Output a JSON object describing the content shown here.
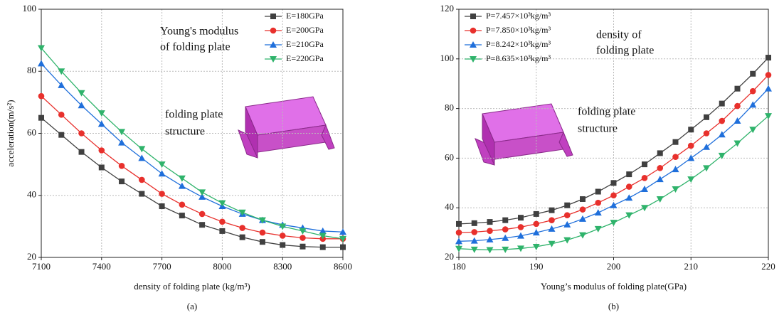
{
  "chart_data": [
    {
      "type": "line",
      "y_label": "acceleration(m/s²)",
      "x_label": "density of folding plate (kg/m³)",
      "caption": "(a)",
      "annotations": [
        "Young's modulus",
        "of folding plate",
        "folding plate",
        "structure"
      ],
      "x": [
        7100,
        7200,
        7300,
        7400,
        7500,
        7600,
        7700,
        7800,
        7900,
        8000,
        8100,
        8200,
        8300,
        8400,
        8500,
        8600
      ],
      "xlim": [
        7100,
        8600
      ],
      "xticks": [
        7100,
        7400,
        7700,
        8000,
        8300,
        8600
      ],
      "ylim": [
        20,
        100
      ],
      "yticks": [
        20,
        40,
        60,
        80,
        100
      ],
      "grid": true,
      "legend": "upper right",
      "series": [
        {
          "name": "E=180GPa",
          "color": "#404040",
          "marker": "square",
          "values": [
            65,
            59.5,
            54,
            49,
            44.5,
            40.5,
            36.5,
            33.5,
            30.5,
            28.5,
            26.5,
            25,
            24,
            23.5,
            23.3,
            23.3
          ]
        },
        {
          "name": "E=200GPa",
          "color": "#e8302c",
          "marker": "circle",
          "values": [
            72,
            66,
            60,
            54.5,
            49.5,
            45,
            40.5,
            37,
            34,
            31.5,
            29.5,
            28,
            27,
            26.3,
            26,
            26
          ]
        },
        {
          "name": "E=210GPa",
          "color": "#1f6fdb",
          "marker": "triangle-up",
          "values": [
            82.5,
            75.5,
            69,
            63,
            57,
            52,
            47,
            43,
            39.5,
            36.5,
            34,
            32,
            30.5,
            29.5,
            28.5,
            28.2
          ]
        },
        {
          "name": "E=220GPa",
          "color": "#2fb36b",
          "marker": "triangle-down",
          "values": [
            87.5,
            80,
            73,
            66.5,
            60.5,
            55,
            50,
            45.5,
            41,
            37.5,
            34.5,
            32,
            30,
            28.5,
            27,
            26
          ]
        }
      ]
    },
    {
      "type": "line",
      "x_label": "Young’s modulus of folding plate(GPa)",
      "caption": "(b)",
      "annotations": [
        "density of",
        "folding plate",
        "folding plate",
        "structure"
      ],
      "x": [
        180,
        182,
        184,
        186,
        188,
        190,
        192,
        194,
        196,
        198,
        200,
        202,
        204,
        206,
        208,
        210,
        212,
        214,
        216,
        218,
        220
      ],
      "xlim": [
        180,
        220
      ],
      "xticks": [
        180,
        190,
        200,
        210,
        220
      ],
      "ylim": [
        20,
        120
      ],
      "yticks": [
        20,
        40,
        60,
        80,
        100,
        120
      ],
      "grid": true,
      "legend": "upper left",
      "series": [
        {
          "name": "P=7.457×10³kg/m³",
          "color": "#404040",
          "marker": "square",
          "values": [
            33.5,
            33.8,
            34.3,
            35,
            36,
            37.5,
            39,
            41,
            43.5,
            46.5,
            50,
            53.5,
            57.5,
            62,
            66.5,
            71.5,
            76.5,
            82,
            88,
            94,
            100.5
          ]
        },
        {
          "name": "P=7.850×10³kg/m³",
          "color": "#e8302c",
          "marker": "circle",
          "values": [
            30,
            30.2,
            30.7,
            31.3,
            32.2,
            33.5,
            35,
            37,
            39.3,
            42,
            45,
            48.5,
            52,
            56,
            60.5,
            65,
            70,
            75,
            81,
            87,
            93.5
          ]
        },
        {
          "name": "P=8.242×10³kg/m³",
          "color": "#1f6fdb",
          "marker": "triangle-up",
          "values": [
            26.5,
            26.7,
            27.2,
            27.8,
            28.7,
            30,
            31.5,
            33.2,
            35.5,
            38,
            41,
            44,
            47.5,
            51.5,
            55.5,
            60,
            64.5,
            69.5,
            75,
            81.5,
            88
          ]
        },
        {
          "name": "P=8.635×10³kg/m³",
          "color": "#2fb36b",
          "marker": "triangle-down",
          "values": [
            23.5,
            23.2,
            23,
            23.2,
            23.6,
            24.3,
            25.5,
            27,
            29,
            31.5,
            34,
            37,
            40,
            43.5,
            47.5,
            51.5,
            56,
            61,
            66,
            71.5,
            77
          ]
        }
      ]
    }
  ]
}
